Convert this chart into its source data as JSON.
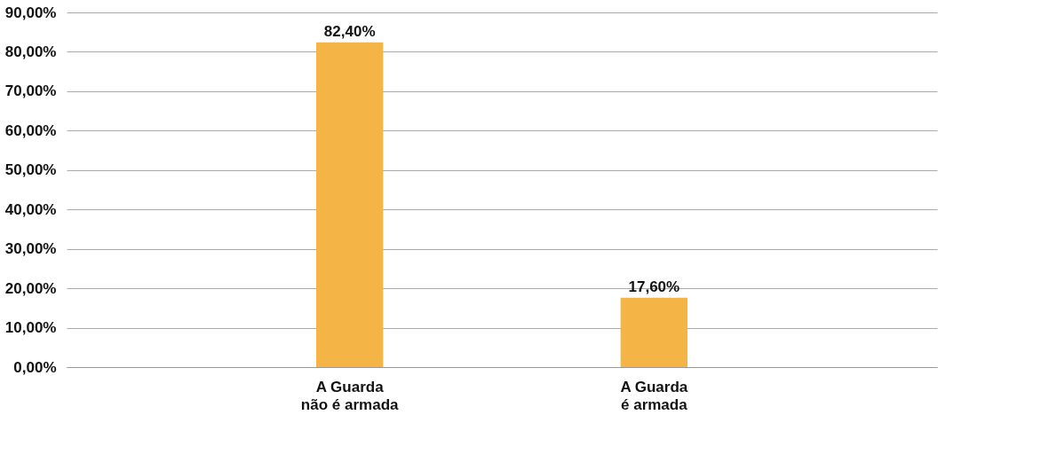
{
  "chart_data": {
    "type": "bar",
    "categories": [
      "A Guarda\nnão é armada",
      "A Guarda\né armada"
    ],
    "values": [
      82.4,
      17.6
    ],
    "color": "#f4b446",
    "value_labels": [
      "82,40%",
      "17,60%"
    ],
    "ylim": [
      0,
      90
    ],
    "yticks": [
      {
        "value": 0,
        "label": "0,00%"
      },
      {
        "value": 10,
        "label": "10,00%"
      },
      {
        "value": 20,
        "label": "20,00%"
      },
      {
        "value": 30,
        "label": "30,00%"
      },
      {
        "value": 40,
        "label": "40,00%"
      },
      {
        "value": 50,
        "label": "50,00%"
      },
      {
        "value": 60,
        "label": "60,00%"
      },
      {
        "value": 70,
        "label": "70,00%"
      },
      {
        "value": 80,
        "label": "80,00%"
      },
      {
        "value": 90,
        "label": "90,00%"
      }
    ],
    "grid": "y"
  }
}
